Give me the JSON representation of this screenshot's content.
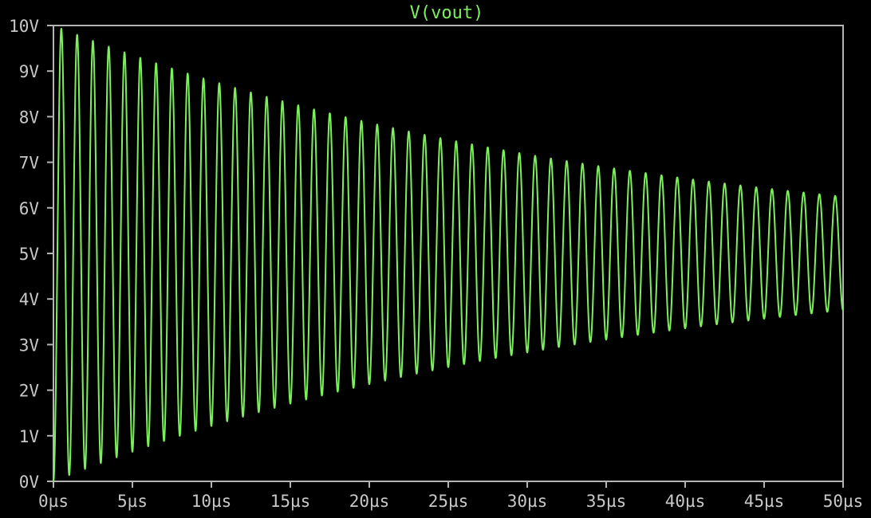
{
  "chart_data": {
    "type": "line",
    "title": "V(vout)",
    "xlim": [
      0,
      50
    ],
    "ylim": [
      0,
      10
    ],
    "x_ticks": [
      "0µs",
      "5µs",
      "10µs",
      "15µs",
      "20µs",
      "25µs",
      "30µs",
      "35µs",
      "40µs",
      "45µs",
      "50µs"
    ],
    "y_ticks": [
      "0V",
      "1V",
      "2V",
      "3V",
      "4V",
      "5V",
      "6V",
      "7V",
      "8V",
      "9V",
      "10V"
    ],
    "grid": false,
    "series": [
      {
        "name": "V(vout)",
        "color": "#7cf05a",
        "offset": 5,
        "initial_amplitude": 5,
        "decay_time_constant": 36,
        "frequency_mhz": 1,
        "phase_deg": -90,
        "x_start": 0,
        "x_end": 50
      }
    ],
    "colors": {
      "background": "#000000",
      "frame": "#b4b4b4",
      "tick_label": "#c8c8c8",
      "title": "#7cf05a"
    }
  }
}
